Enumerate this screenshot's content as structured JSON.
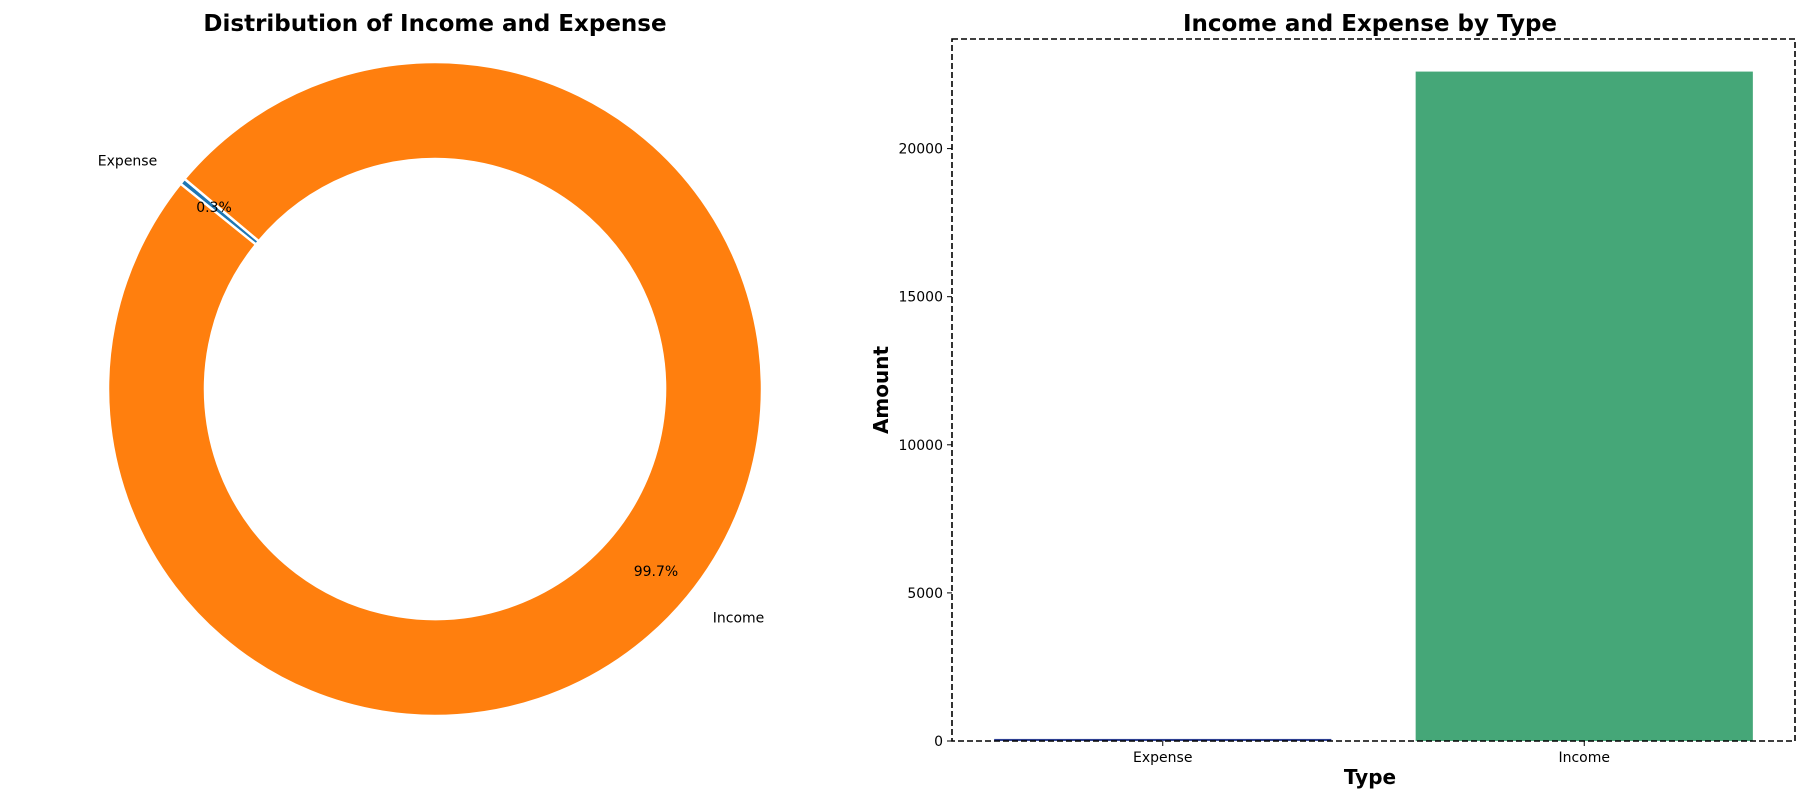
{
  "chart_data": [
    {
      "type": "pie",
      "title": "Distribution of Income and Expense",
      "donut": true,
      "labels": [
        "Expense",
        "Income"
      ],
      "values": [
        70,
        22600
      ],
      "percent_labels": [
        "0.3%",
        "99.7%"
      ],
      "colors": [
        "#1f77b4",
        "#ff7f0e"
      ]
    },
    {
      "type": "bar",
      "title": "Income and Expense by Type",
      "xlabel": "Type",
      "ylabel": "Amount",
      "categories": [
        "Expense",
        "Income"
      ],
      "values": [
        70,
        22600
      ],
      "ylim": [
        0,
        23700
      ],
      "yticks": [
        0,
        5000,
        10000,
        15000,
        20000
      ],
      "ytick_labels": [
        "0",
        "5000",
        "10000",
        "15000",
        "20000"
      ],
      "colors": [
        "#2c3e91",
        "#45a778"
      ],
      "grid": false,
      "frame": "dashed"
    }
  ]
}
